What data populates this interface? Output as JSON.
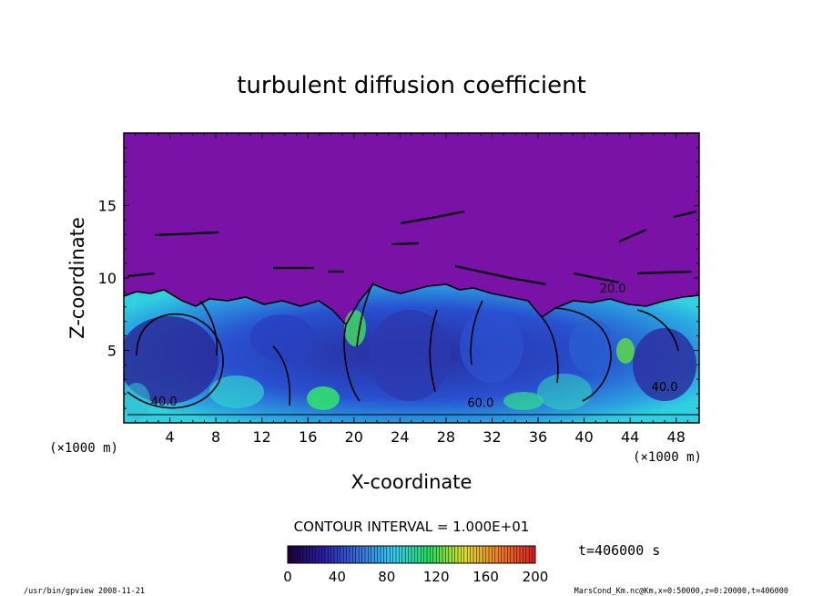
{
  "chart_data": {
    "type": "heatmap",
    "title": "turbulent diffusion coefficient",
    "xlabel": "X-coordinate",
    "ylabel": "Z-coordinate",
    "x_unit": "(×1000 m)",
    "y_unit": "(×1000 m)",
    "xlim": [
      0,
      50
    ],
    "ylim": [
      0,
      20
    ],
    "x_ticks": [
      4,
      8,
      12,
      16,
      20,
      24,
      28,
      32,
      36,
      40,
      44,
      48
    ],
    "y_ticks": [
      5,
      10,
      15
    ],
    "contour_interval": "CONTOUR INTERVAL = 1.000E+01",
    "time_label": "t=406000 s",
    "colorbar": {
      "min": 0,
      "max": 200,
      "ticks": [
        0,
        40,
        80,
        120,
        160,
        200
      ],
      "colors": [
        "#20003a",
        "#2a20b0",
        "#3a70e0",
        "#30d0f0",
        "#20e060",
        "#e0e020",
        "#f08020",
        "#e02020"
      ]
    },
    "background_value_color": "#7a12a8",
    "contour_labels": [
      {
        "x": 3.5,
        "y": 1.2,
        "text": "40.0"
      },
      {
        "x": 47,
        "y": 2.2,
        "text": "40.0"
      },
      {
        "x": 31,
        "y": 1.1,
        "text": "60.0"
      },
      {
        "x": 42.5,
        "y": 9.0,
        "text": "20.0"
      }
    ]
  },
  "footer": {
    "left": "/usr/bin/gpview   2008-11-21",
    "right": "MarsCond_Km.nc@Km,x=0:50000,z=0:20000,t=406000"
  }
}
